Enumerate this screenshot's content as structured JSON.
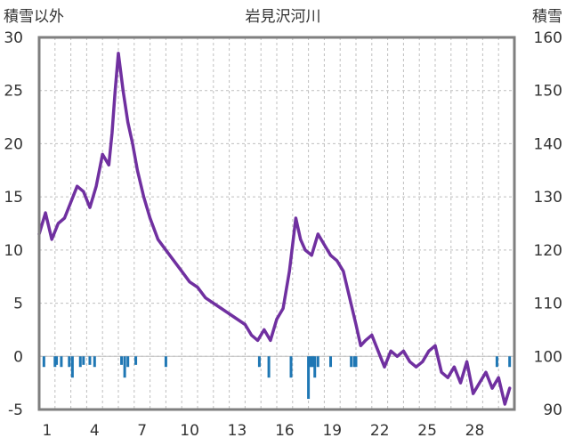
{
  "chart_data": {
    "type": "line",
    "title": "岩見沢河川",
    "ylabel_left": "積雪以外",
    "ylabel_right": "積雪",
    "x_ticks": [
      "1",
      "4",
      "7",
      "10",
      "13",
      "16",
      "19",
      "22",
      "25",
      "28"
    ],
    "x_range": [
      0,
      30
    ],
    "ylim_left": [
      -5,
      30
    ],
    "ylim_right": [
      90,
      160
    ],
    "y_ticks_left": [
      "-5",
      "0",
      "5",
      "10",
      "15",
      "20",
      "25",
      "30"
    ],
    "y_ticks_right": [
      "90",
      "100",
      "110",
      "120",
      "130",
      "140",
      "150",
      "160"
    ],
    "grid": "vertical dashed lines at each day; horizontal dashed lines at left ticks",
    "series": [
      {
        "axis": "left",
        "style": "line",
        "color": "#7030a0",
        "x": [
          0.0,
          0.4,
          0.8,
          1.2,
          1.6,
          2.0,
          2.4,
          2.8,
          3.2,
          3.6,
          4.0,
          4.4,
          4.6,
          4.8,
          5.0,
          5.3,
          5.6,
          5.9,
          6.2,
          6.6,
          7.0,
          7.5,
          8.0,
          8.5,
          9.0,
          9.5,
          10.0,
          10.5,
          11.0,
          11.5,
          12.0,
          12.5,
          13.0,
          13.4,
          13.8,
          14.2,
          14.6,
          15.0,
          15.4,
          15.8,
          16.0,
          16.2,
          16.5,
          16.8,
          17.2,
          17.6,
          18.0,
          18.4,
          18.8,
          19.2,
          19.6,
          20.0,
          20.3,
          20.6,
          21.0,
          21.4,
          21.8,
          22.2,
          22.6,
          23.0,
          23.4,
          23.8,
          24.2,
          24.6,
          25.0,
          25.4,
          25.8,
          26.2,
          26.6,
          27.0,
          27.4,
          27.8,
          28.2,
          28.6,
          29.0,
          29.4,
          29.7
        ],
        "y": [
          11.5,
          13.5,
          11.0,
          12.5,
          13.0,
          14.5,
          16.0,
          15.5,
          14.0,
          16.0,
          19.0,
          18.0,
          21.0,
          25.0,
          28.5,
          25.0,
          22.0,
          20.0,
          17.5,
          15.0,
          13.0,
          11.0,
          10.0,
          9.0,
          8.0,
          7.0,
          6.5,
          5.5,
          5.0,
          4.5,
          4.0,
          3.5,
          3.0,
          2.0,
          1.5,
          2.5,
          1.5,
          3.5,
          4.5,
          8.0,
          10.5,
          13.0,
          11.0,
          10.0,
          9.5,
          11.5,
          10.5,
          9.5,
          9.0,
          8.0,
          5.5,
          3.0,
          1.0,
          1.5,
          2.0,
          0.5,
          -1.0,
          0.5,
          0.0,
          0.5,
          -0.5,
          -1.0,
          -0.5,
          0.5,
          1.0,
          -1.5,
          -2.0,
          -1.0,
          -2.5,
          -0.5,
          -3.5,
          -2.5,
          -1.5,
          -3.0,
          -2.0,
          -4.5,
          -3.0
        ]
      },
      {
        "axis": "left",
        "style": "bars",
        "color": "#1f77b4",
        "x": [
          0.3,
          1.0,
          1.1,
          1.4,
          1.9,
          2.1,
          2.6,
          2.8,
          3.2,
          3.5,
          5.2,
          5.4,
          5.6,
          6.1,
          8.0,
          13.9,
          14.5,
          15.9,
          17.0,
          17.1,
          17.2,
          17.3,
          17.4,
          17.6,
          18.4,
          19.7,
          19.9,
          20.0,
          28.9,
          29.7
        ],
        "values": [
          -1.0,
          -1.0,
          -0.8,
          -1.0,
          -1.0,
          -2.0,
          -1.0,
          -0.8,
          -0.8,
          -1.0,
          -0.8,
          -2.0,
          -1.0,
          -0.8,
          -1.0,
          -1.0,
          -2.0,
          -2.0,
          -4.0,
          -1.0,
          -1.0,
          -1.0,
          -2.0,
          -1.0,
          -1.0,
          -1.0,
          -1.0,
          -1.0,
          -1.0,
          -1.0
        ]
      }
    ]
  }
}
